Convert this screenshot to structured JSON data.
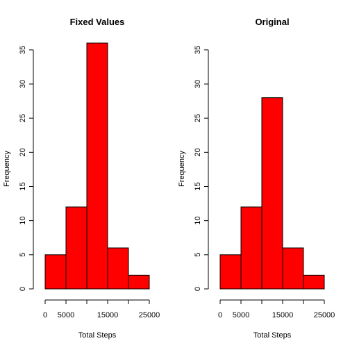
{
  "chart_data": [
    {
      "type": "bar",
      "title": "Fixed Values",
      "xlabel": "Total Steps",
      "ylabel": "Frequency",
      "bins": [
        [
          0,
          5000
        ],
        [
          5000,
          10000
        ],
        [
          10000,
          15000
        ],
        [
          15000,
          20000
        ],
        [
          20000,
          25000
        ]
      ],
      "values": [
        5,
        12,
        36,
        6,
        2
      ],
      "xlim": [
        0,
        25000
      ],
      "ylim": [
        0,
        36
      ],
      "x_ticks": [
        0,
        5000,
        10000,
        15000,
        20000,
        25000
      ],
      "x_tick_labels": [
        "0",
        "5000",
        "",
        "15000",
        "",
        "25000"
      ],
      "y_ticks": [
        0,
        5,
        10,
        15,
        20,
        25,
        30,
        35
      ],
      "y_tick_labels": [
        "0",
        "5",
        "10",
        "15",
        "20",
        "25",
        "30",
        "35"
      ],
      "bar_color": "#FF0000",
      "grid": false
    },
    {
      "type": "bar",
      "title": "Original",
      "xlabel": "Total Steps",
      "ylabel": "Frequency",
      "bins": [
        [
          0,
          5000
        ],
        [
          5000,
          10000
        ],
        [
          10000,
          15000
        ],
        [
          15000,
          20000
        ],
        [
          20000,
          25000
        ]
      ],
      "values": [
        5,
        12,
        28,
        6,
        2
      ],
      "xlim": [
        0,
        25000
      ],
      "ylim": [
        0,
        36
      ],
      "x_ticks": [
        0,
        5000,
        10000,
        15000,
        20000,
        25000
      ],
      "x_tick_labels": [
        "0",
        "5000",
        "",
        "15000",
        "",
        "25000"
      ],
      "y_ticks": [
        0,
        5,
        10,
        15,
        20,
        25,
        30,
        35
      ],
      "y_tick_labels": [
        "0",
        "5",
        "10",
        "15",
        "20",
        "25",
        "30",
        "35"
      ],
      "bar_color": "#FF0000",
      "grid": false
    }
  ]
}
